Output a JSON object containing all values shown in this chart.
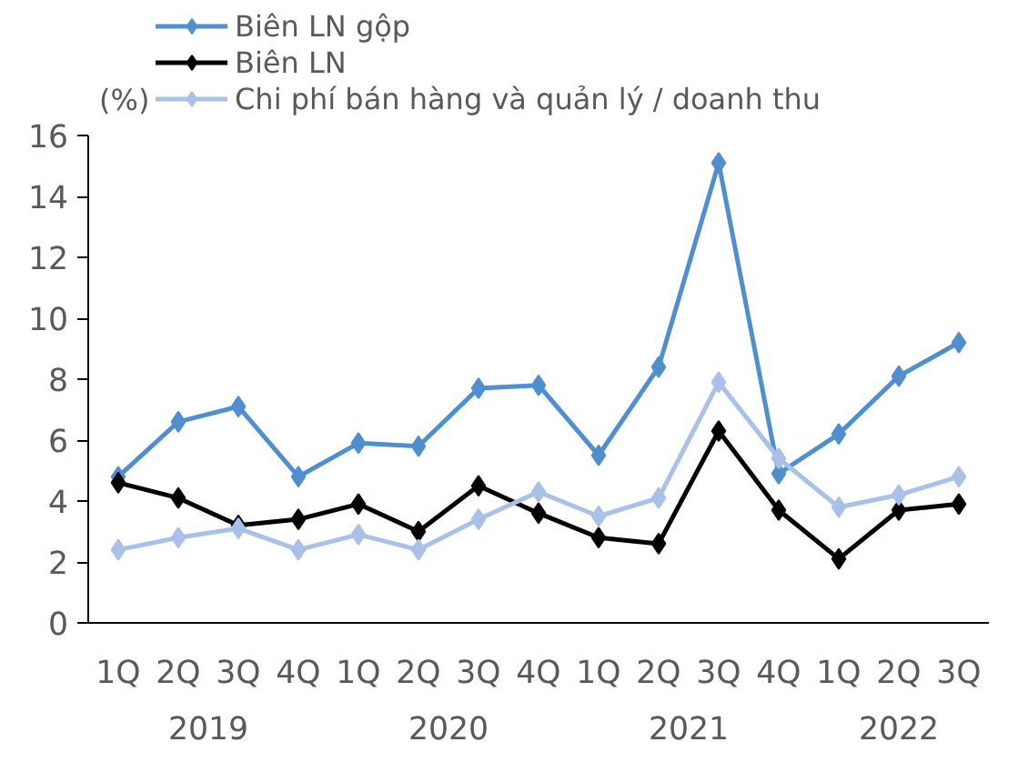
{
  "chart_data": {
    "type": "line",
    "ylabel": "(%)",
    "categories": [
      "1Q",
      "2Q",
      "3Q",
      "4Q",
      "1Q",
      "2Q",
      "3Q",
      "4Q",
      "1Q",
      "2Q",
      "3Q",
      "4Q",
      "1Q",
      "2Q",
      "3Q"
    ],
    "annotations": [
      "2019",
      "2020",
      "2021",
      "2022"
    ],
    "ylim": [
      0,
      16
    ],
    "yticks": [
      0,
      2,
      4,
      6,
      8,
      10,
      12,
      14,
      16
    ],
    "grid": false,
    "legend": "top left",
    "marker": "diamond",
    "line_style": "solid",
    "series": [
      {
        "name": "Biên LN gộp",
        "color": "#4f8fd0",
        "values": [
          4.8,
          6.6,
          7.1,
          4.8,
          5.9,
          5.8,
          7.7,
          7.8,
          5.5,
          8.4,
          15.1,
          4.9,
          6.2,
          8.1,
          9.2
        ]
      },
      {
        "name": "Biên LN",
        "color": "#000000",
        "values": [
          4.6,
          4.1,
          3.2,
          3.4,
          3.9,
          3.0,
          4.5,
          3.6,
          2.8,
          2.6,
          6.3,
          3.7,
          2.1,
          3.7,
          3.9
        ]
      },
      {
        "name": "Chi phí bán hàng và quản lý / doanh thu",
        "color": "#a9c1e8",
        "values": [
          2.4,
          2.8,
          3.1,
          2.4,
          2.9,
          2.4,
          3.4,
          4.3,
          3.5,
          4.1,
          7.9,
          5.4,
          3.8,
          4.2,
          4.8
        ]
      }
    ]
  }
}
